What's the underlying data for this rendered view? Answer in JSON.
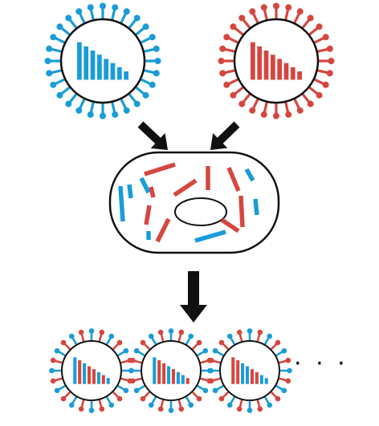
{
  "colors": {
    "strain_a": "#1a9cd8",
    "strain_b": "#d4473f",
    "outline": "#111111",
    "background": "#ffffff"
  },
  "parents": [
    {
      "strain": "a",
      "segments": "aaaaaaaa"
    },
    {
      "strain": "b",
      "segments": "bbbbbbbb"
    }
  ],
  "cell": {
    "fragment_strains": "bbbabaaabbababab"
  },
  "progeny": [
    {
      "spikes": "mixed",
      "segments": "ababbaba"
    },
    {
      "spikes": "mixed",
      "segments": "abbabaab"
    },
    {
      "spikes": "mixed",
      "segments": "bbaabbaa"
    }
  ],
  "more_indicator": "· · ·",
  "icons": [
    "down-right-arrow-icon",
    "down-left-arrow-icon",
    "down-arrow-icon"
  ]
}
